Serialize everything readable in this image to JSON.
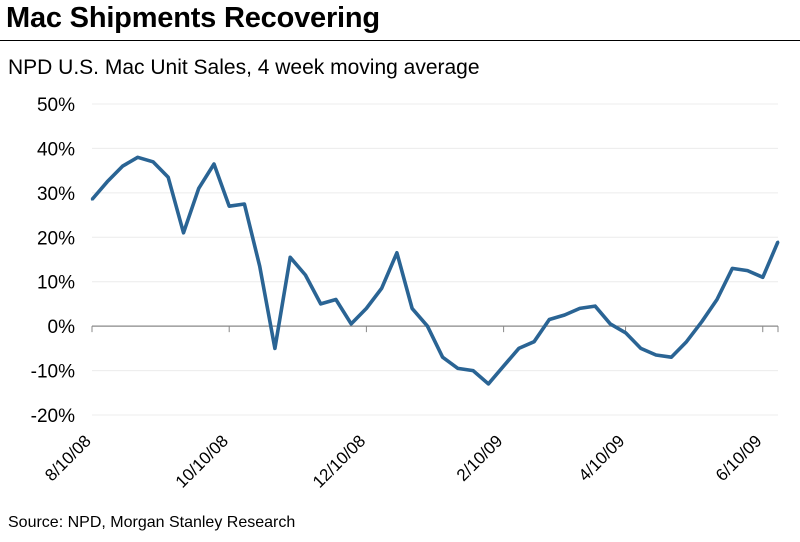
{
  "header": {
    "title": "Mac Shipments Recovering",
    "subtitle": "NPD U.S. Mac Unit Sales, 4 week moving average"
  },
  "footer": {
    "source": "Source: NPD, Morgan Stanley Research"
  },
  "colors": {
    "line": "#2a6494",
    "grid": "#ececec",
    "axis": "#888888"
  },
  "chart_data": {
    "type": "line",
    "title": "Mac Shipments Recovering",
    "subtitle": "NPD U.S. Mac Unit Sales, 4 week moving average",
    "xlabel": "",
    "ylabel": "",
    "ylim": [
      -20,
      50
    ],
    "yticks": [
      -20,
      -10,
      0,
      10,
      20,
      30,
      40,
      50
    ],
    "ytick_labels": [
      "-20%",
      "-10%",
      "0%",
      "10%",
      "20%",
      "30%",
      "40%",
      "50%"
    ],
    "x_start": "8/10/08",
    "x_interval": "weekly",
    "xtick_labels": [
      {
        "label": "8/10/08",
        "index": 0
      },
      {
        "label": "10/10/08",
        "index": 9
      },
      {
        "label": "12/10/08",
        "index": 18
      },
      {
        "label": "2/10/09",
        "index": 27
      },
      {
        "label": "4/10/09",
        "index": 35
      },
      {
        "label": "6/10/09",
        "index": 44
      }
    ],
    "grid": true,
    "series": [
      {
        "name": "",
        "values": [
          28.5,
          32.5,
          36,
          38,
          37,
          33.5,
          21,
          31,
          36.5,
          27,
          27.5,
          13.5,
          -5,
          15.5,
          11.5,
          5,
          6,
          0.5,
          4,
          8.5,
          16.5,
          4,
          0,
          -7,
          -9.5,
          -10,
          -13,
          -9,
          -5,
          -3.5,
          1.5,
          2.5,
          4,
          4.5,
          0.5,
          -1.5,
          -5,
          -6.5,
          -7,
          -3.5,
          1,
          6,
          13,
          12.5,
          11,
          19
        ]
      }
    ]
  }
}
